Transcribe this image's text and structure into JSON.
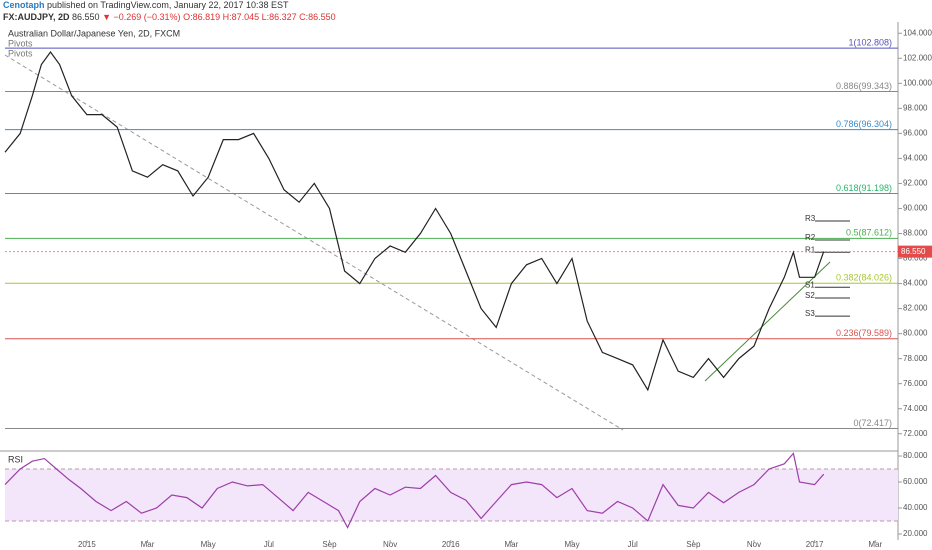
{
  "header": {
    "author": "Cenotaph",
    "published": "published on TradingView.com, January 22, 2017 10:38 EST",
    "symbol": "FX:AUDJPY, 2D",
    "last": "86.550",
    "change": "▼ −0.269 (−0.31%)",
    "ohlc": "O:86.819 H:87.045 L:86.327 C:86.550",
    "instrument": "Australian Dollar/Japanese Yen, 2D, FXCM",
    "indicators": [
      "Pivots",
      "Pivots"
    ],
    "rsi_label": "RSI"
  },
  "chart_data": [
    {
      "type": "line",
      "name": "price",
      "color": "#222",
      "x": [
        -2.7,
        -2.2,
        -1.8,
        -1.5,
        -1.2,
        -0.9,
        -0.5,
        0,
        0.5,
        1,
        1.5,
        2,
        2.5,
        3,
        3.5,
        4,
        4.5,
        5,
        5.5,
        6,
        6.5,
        7,
        7.5,
        8,
        8.5,
        9,
        9.5,
        10,
        10.5,
        11,
        11.5,
        12,
        12.5,
        13,
        13.5,
        14,
        14.5,
        15,
        15.5,
        16,
        16.5,
        17,
        17.5,
        18,
        18.5,
        19,
        19.5,
        20,
        20.5,
        21,
        21.5,
        22,
        22.5,
        23,
        23.3,
        23.5,
        24,
        24.3
      ],
      "values": [
        94.5,
        96,
        99,
        101.5,
        102.5,
        101.5,
        99,
        97.5,
        97.5,
        96.5,
        93,
        92.5,
        93.5,
        93,
        91,
        92.5,
        95.5,
        95.5,
        96,
        94,
        91.5,
        90.5,
        92,
        90,
        85,
        84,
        86,
        87,
        86.5,
        88,
        90,
        88,
        85,
        82,
        80.5,
        84,
        85.5,
        86,
        84,
        86,
        81,
        78.5,
        78,
        77.5,
        75.5,
        79.5,
        77,
        76.5,
        78,
        76.5,
        78,
        79,
        82,
        84.5,
        86.5,
        84.5,
        84.5,
        86.55
      ],
      "xlim": [
        -2.7,
        26.75
      ],
      "xticks": [
        {
          "value": 0,
          "label": "2015"
        },
        {
          "value": 2,
          "label": "Mar"
        },
        {
          "value": 4,
          "label": "May"
        },
        {
          "value": 6,
          "label": "Jul"
        },
        {
          "value": 8,
          "label": "Sep"
        },
        {
          "value": 10,
          "label": "Nov"
        },
        {
          "value": 12,
          "label": "2016"
        },
        {
          "value": 14,
          "label": "Mar"
        },
        {
          "value": 16,
          "label": "May"
        },
        {
          "value": 18,
          "label": "Jul"
        },
        {
          "value": 20,
          "label": "Sep"
        },
        {
          "value": 22,
          "label": "Nov"
        },
        {
          "value": 24,
          "label": "2017"
        },
        {
          "value": 26,
          "label": "Mar"
        }
      ],
      "ylim": [
        70.7,
        104.9
      ],
      "yticks": [
        {
          "value": 72,
          "label": "72.000"
        },
        {
          "value": 74,
          "label": "74.000"
        },
        {
          "value": 76,
          "label": "76.000"
        },
        {
          "value": 78,
          "label": "78.000"
        },
        {
          "value": 80,
          "label": "80.000"
        },
        {
          "value": 82,
          "label": "82.000"
        },
        {
          "value": 84,
          "label": "84.000"
        },
        {
          "value": 86,
          "label": "86.000"
        },
        {
          "value": 88,
          "label": "88.000"
        },
        {
          "value": 90,
          "label": "90.000"
        },
        {
          "value": 92,
          "label": "92.000"
        },
        {
          "value": 94,
          "label": "94.000"
        },
        {
          "value": 96,
          "label": "96.000"
        },
        {
          "value": 98,
          "label": "98.000"
        },
        {
          "value": 100,
          "label": "100.000"
        },
        {
          "value": 102,
          "label": "102.000"
        },
        {
          "value": 104,
          "label": "104.000"
        }
      ],
      "last_price": {
        "value": 86.55,
        "label": "86.550"
      },
      "fib_levels": [
        {
          "value": 102.808,
          "label": "1(102.808)",
          "color": "#5555bb"
        },
        {
          "value": 99.343,
          "label": "0.886(99.343)",
          "color": "#888888"
        },
        {
          "value": 96.304,
          "label": "0.786(96.304)",
          "color": "#3a8bc8"
        },
        {
          "value": 91.198,
          "label": "0.618(91.198)",
          "color": "#2bb36b"
        },
        {
          "value": 87.612,
          "label": "0.5(87.612)",
          "color": "#4caf50"
        },
        {
          "value": 84.026,
          "label": "0.382(84.026)",
          "color": "#a8c830"
        },
        {
          "value": 79.589,
          "label": "0.236(79.589)",
          "color": "#d9534f"
        },
        {
          "value": 72.417,
          "label": "0(72.417)",
          "color": "#888888"
        }
      ],
      "pivots": [
        {
          "name": "R3",
          "value": 89.0
        },
        {
          "name": "R2",
          "value": 87.48
        },
        {
          "name": "R1",
          "value": 86.5
        },
        {
          "name": "S1",
          "value": 83.7
        },
        {
          "name": "S2",
          "value": 82.85
        },
        {
          "name": "S3",
          "value": 81.4
        }
      ]
    },
    {
      "type": "line",
      "name": "RSI",
      "color": "#9c3fa8",
      "x": [
        -2.7,
        -2.2,
        -1.8,
        -1.4,
        -1.0,
        -0.6,
        -0.2,
        0.3,
        0.8,
        1.3,
        1.8,
        2.3,
        2.8,
        3.3,
        3.8,
        4.3,
        4.8,
        5.3,
        5.8,
        6.3,
        6.8,
        7.3,
        7.8,
        8.3,
        8.6,
        9.0,
        9.5,
        10,
        10.5,
        11,
        11.5,
        12,
        12.5,
        13,
        13.5,
        14,
        14.5,
        15,
        15.5,
        16,
        16.5,
        17,
        17.5,
        18,
        18.5,
        19,
        19.5,
        20,
        20.5,
        21,
        21.5,
        22,
        22.5,
        23,
        23.3,
        23.5,
        24,
        24.3
      ],
      "values": [
        58,
        70,
        76,
        78,
        70,
        62,
        55,
        45,
        38,
        45,
        36,
        40,
        50,
        48,
        40,
        55,
        60,
        57,
        58,
        48,
        38,
        52,
        45,
        38,
        25,
        45,
        55,
        50,
        56,
        55,
        65,
        52,
        46,
        32,
        45,
        58,
        60,
        58,
        48,
        55,
        38,
        36,
        45,
        40,
        30,
        58,
        42,
        40,
        52,
        44,
        52,
        58,
        70,
        74,
        82,
        60,
        58,
        66
      ],
      "xlim": [
        -2.7,
        26.75
      ],
      "ylim": [
        15.4,
        83.1
      ],
      "yticks": [
        {
          "value": 20,
          "label": "20.000"
        },
        {
          "value": 40,
          "label": "40.000"
        },
        {
          "value": 60,
          "label": "60.000"
        },
        {
          "value": 80,
          "label": "80.000"
        }
      ],
      "band": [
        30,
        70
      ]
    }
  ]
}
